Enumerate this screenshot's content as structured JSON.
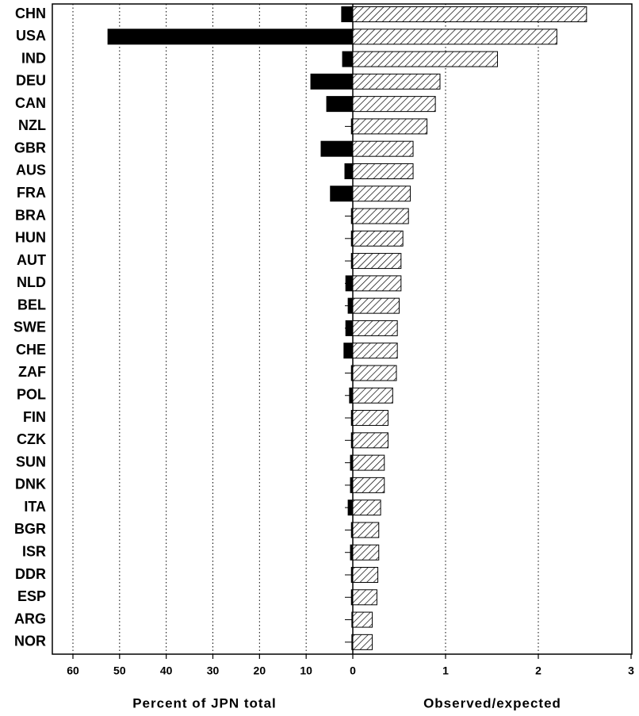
{
  "chart_data": {
    "type": "bar",
    "orientation": "horizontal",
    "grid": true,
    "categories": [
      "CHN",
      "USA",
      "IND",
      "DEU",
      "CAN",
      "NZL",
      "GBR",
      "AUS",
      "FRA",
      "BRA",
      "HUN",
      "AUT",
      "NLD",
      "BEL",
      "SWE",
      "CHE",
      "ZAF",
      "POL",
      "FIN",
      "CZK",
      "SUN",
      "DNK",
      "ITA",
      "BGR",
      "ISR",
      "DDR",
      "ESP",
      "ARG",
      "NOR"
    ],
    "series": [
      {
        "name": "Percent of JPN total",
        "color": "#000000",
        "fill": "solid",
        "values": [
          2.4,
          52.5,
          2.2,
          9,
          5.6,
          0.3,
          6.8,
          1.7,
          4.8,
          0.3,
          0.3,
          0.3,
          1.5,
          1,
          1.5,
          1.9,
          0.3,
          0.7,
          0.3,
          0.3,
          0.5,
          0.5,
          1,
          0.3,
          0.5,
          0.3,
          0.3,
          0.2,
          0.2
        ],
        "xlim": [
          60,
          0
        ],
        "xticks": [
          60,
          50,
          40,
          30,
          20,
          10
        ]
      },
      {
        "name": "Observed/expected",
        "color": "#000000",
        "fill": "hatch",
        "values": [
          2.52,
          2.2,
          1.56,
          0.94,
          0.89,
          0.8,
          0.65,
          0.65,
          0.62,
          0.6,
          0.54,
          0.52,
          0.52,
          0.5,
          0.48,
          0.48,
          0.47,
          0.43,
          0.38,
          0.38,
          0.34,
          0.34,
          0.3,
          0.28,
          0.28,
          0.27,
          0.26,
          0.21,
          0.21
        ],
        "xlim": [
          0,
          3
        ],
        "xticks": [
          0,
          1,
          2,
          3
        ]
      }
    ]
  }
}
